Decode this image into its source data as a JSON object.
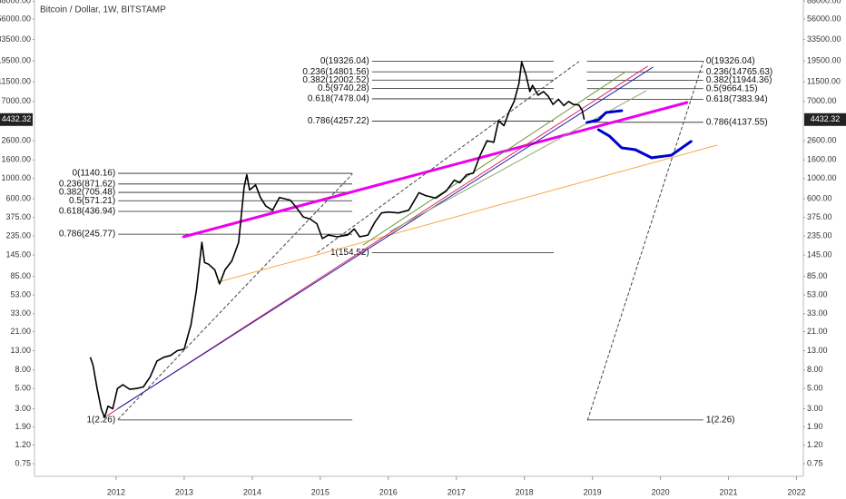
{
  "chart_data": {
    "type": "line",
    "title": "Bitcoin / Dollar, 1W, BITSTAMP",
    "log_scale": true,
    "xlim": [
      2010.8,
      2022.1
    ],
    "xticks": [
      2012,
      2013,
      2014,
      2015,
      2016,
      2017,
      2018,
      2019,
      2020,
      2021,
      2022
    ],
    "ylim": [
      0.545,
      90600
    ],
    "yticks": [
      {
        "value": 0.75,
        "label": "0.75"
      },
      {
        "value": 1.2,
        "label": "1.20"
      },
      {
        "value": 1.9,
        "label": "1.90"
      },
      {
        "value": 3,
        "label": "3.00"
      },
      {
        "value": 5,
        "label": "5.00"
      },
      {
        "value": 8,
        "label": "8.00"
      },
      {
        "value": 13,
        "label": "13.00"
      },
      {
        "value": 21,
        "label": "21.00"
      },
      {
        "value": 33,
        "label": "33.00"
      },
      {
        "value": 53,
        "label": "53.00"
      },
      {
        "value": 85,
        "label": "85.00"
      },
      {
        "value": 145,
        "label": "145.00"
      },
      {
        "value": 235,
        "label": "235.00"
      },
      {
        "value": 375,
        "label": "375.00"
      },
      {
        "value": 600,
        "label": "600.00"
      },
      {
        "value": 1000,
        "label": "1000.00"
      },
      {
        "value": 1600,
        "label": "1600.00"
      },
      {
        "value": 2600,
        "label": "2600.00"
      },
      {
        "value": 7000,
        "label": "7000.00"
      },
      {
        "value": 11500,
        "label": "11500.00"
      },
      {
        "value": 19500,
        "label": "19500.00"
      },
      {
        "value": 33500,
        "label": "33500.00"
      },
      {
        "value": 56000,
        "label": "56000.00"
      },
      {
        "value": 88000,
        "label": "88000.00"
      }
    ],
    "series": [
      {
        "color": "#000000",
        "x": [
          2011.62,
          2011.66,
          2011.72,
          2011.78,
          2011.83,
          2011.88,
          2011.95,
          2012.02,
          2012.1,
          2012.2,
          2012.3,
          2012.4,
          2012.5,
          2012.6,
          2012.7,
          2012.8,
          2012.9,
          2013.0,
          2013.1,
          2013.18,
          2013.26,
          2013.3,
          2013.36,
          2013.45,
          2013.52,
          2013.6,
          2013.7,
          2013.8,
          2013.88,
          2013.92,
          2013.96,
          2014.05,
          2014.12,
          2014.2,
          2014.3,
          2014.4,
          2014.48,
          2014.56,
          2014.65,
          2014.75,
          2014.85,
          2014.95,
          2015.03,
          2015.12,
          2015.25,
          2015.4,
          2015.5,
          2015.58,
          2015.7,
          2015.8,
          2015.9,
          2016.0,
          2016.15,
          2016.3,
          2016.45,
          2016.55,
          2016.7,
          2016.85,
          2016.97,
          2017.05,
          2017.15,
          2017.25,
          2017.35,
          2017.45,
          2017.55,
          2017.62,
          2017.7,
          2017.78,
          2017.85,
          2017.92,
          2017.96,
          2018.02,
          2018.08,
          2018.12,
          2018.2,
          2018.28,
          2018.35,
          2018.42,
          2018.5,
          2018.58,
          2018.65,
          2018.72,
          2018.8,
          2018.85,
          2018.88
        ],
        "values": [
          11,
          9,
          5,
          3,
          2.4,
          3.2,
          3,
          5,
          5.5,
          4.9,
          5,
          5.2,
          6.7,
          10,
          11,
          11.5,
          13,
          13.5,
          25,
          60,
          200,
          120,
          115,
          100,
          70,
          100,
          125,
          200,
          800,
          1100,
          750,
          850,
          620,
          500,
          450,
          620,
          600,
          580,
          480,
          380,
          360,
          320,
          220,
          240,
          230,
          240,
          280,
          230,
          240,
          330,
          420,
          430,
          420,
          450,
          700,
          650,
          610,
          730,
          960,
          900,
          1100,
          1150,
          1800,
          2600,
          2500,
          4300,
          3800,
          5500,
          7000,
          11000,
          19000,
          14000,
          9000,
          10500,
          8200,
          9000,
          8000,
          6500,
          7400,
          6300,
          7000,
          6500,
          6400,
          5600,
          4432.32
        ]
      }
    ],
    "fib_sets": [
      {
        "x_range": [
          2012.03,
          2015.47
        ],
        "label_side": "left",
        "levels": [
          {
            "value": 1140.16,
            "label": "0(1140.16)"
          },
          {
            "value": 871.62,
            "label": "0.236(871.62)"
          },
          {
            "value": 705.48,
            "label": "0.382(705.48)"
          },
          {
            "value": 571.21,
            "label": "0.5(571.21)"
          },
          {
            "value": 436.94,
            "label": "0.618(436.94)"
          },
          {
            "value": 245.77,
            "label": "0.786(245.77)"
          },
          {
            "value": 2.26,
            "label": "1(2.26)"
          }
        ]
      },
      {
        "x_range": [
          2015.76,
          2018.43
        ],
        "label_side": "left",
        "levels": [
          {
            "value": 19326.04,
            "label": "0(19326.04)"
          },
          {
            "value": 14801.56,
            "label": "0.236(14801.56)"
          },
          {
            "value": 12002.52,
            "label": "0.382(12002.52)"
          },
          {
            "value": 9740.28,
            "label": "0.5(9740.28)"
          },
          {
            "value": 7478.04,
            "label": "0.618(7478.04)"
          },
          {
            "value": 4257.22,
            "label": "0.786(4257.22)"
          },
          {
            "value": 154.52,
            "label": "1(154.52)"
          }
        ]
      },
      {
        "x_range": [
          2018.92,
          2020.63
        ],
        "label_side": "right",
        "levels": [
          {
            "value": 19326.04,
            "label": "0(19326.04)"
          },
          {
            "value": 14765.63,
            "label": "0.236(14765.63)"
          },
          {
            "value": 11944.36,
            "label": "0.382(11944.36)"
          },
          {
            "value": 9664.15,
            "label": "0.5(9664.15)"
          },
          {
            "value": 7383.94,
            "label": "0.618(7383.94)"
          },
          {
            "value": 4137.55,
            "label": "0.786(4137.55)"
          },
          {
            "value": 2.26,
            "label": "1(2.26)"
          }
        ]
      }
    ],
    "trend_lines": [
      {
        "color": "#ee00ee",
        "bold": true,
        "x": [
          2012.99,
          2020.39
        ],
        "values": [
          229.8,
          6810
        ]
      },
      {
        "color": "#f5a742",
        "x": [
          2013.49,
          2020.83
        ],
        "values": [
          73,
          2322
        ]
      },
      {
        "color": "#e0245e",
        "x": [
          2011.87,
          2019.81
        ],
        "values": [
          2.52,
          17000
        ]
      },
      {
        "color": "#2222aa",
        "x": [
          2012.03,
          2019.89
        ],
        "values": [
          3.03,
          16600
        ]
      },
      {
        "color": "#6a9a3a",
        "x": [
          2015.63,
          2019.49
        ],
        "values": [
          187,
          14800
        ]
      },
      {
        "color": "#8aaa6a",
        "x": [
          2016.03,
          2019.79
        ],
        "values": [
          264,
          9160
        ]
      },
      {
        "color": "#444444",
        "dashed": true,
        "x": [
          2012.03,
          2015.47
        ],
        "values": [
          2.3,
          1116
        ]
      },
      {
        "color": "#444444",
        "dashed": true,
        "x": [
          2014.96,
          2018.8
        ],
        "values": [
          154.5,
          19100
        ]
      },
      {
        "color": "#444444",
        "dashed": true,
        "x": [
          2018.93,
          2020.63
        ],
        "values": [
          2.26,
          19326
        ]
      },
      {
        "color": "#0000cc",
        "bold": true,
        "x": [
          2018.92,
          2019.09,
          2019.2,
          2019.43
        ],
        "values": [
          4110,
          4405,
          5300,
          5545
        ]
      },
      {
        "color": "#0000cc",
        "bold": true,
        "x": [
          2019.09,
          2019.25,
          2019.43,
          2019.63,
          2019.87,
          2020.16,
          2020.45
        ],
        "values": [
          3430,
          2920,
          2170,
          2070,
          1690,
          1800,
          2550
        ]
      }
    ]
  }
}
